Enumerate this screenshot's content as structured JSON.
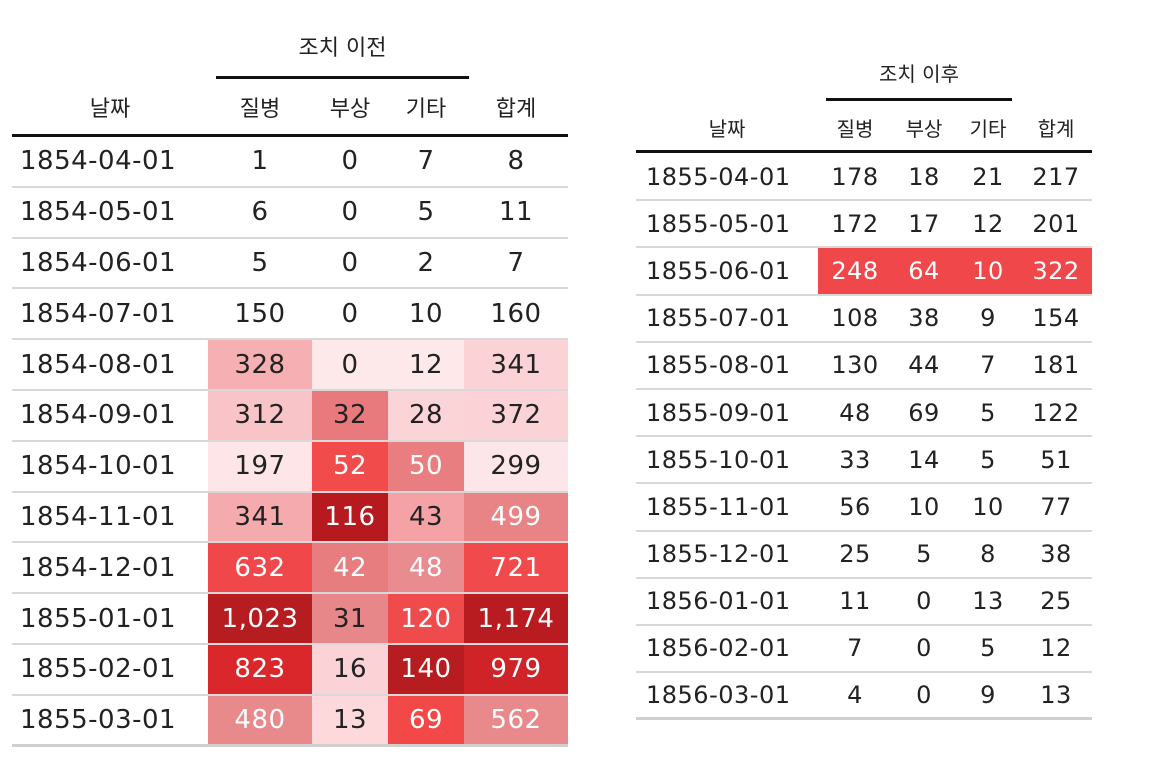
{
  "before": {
    "spanner": "조치 이전",
    "headers": [
      "날짜",
      "질병",
      "부상",
      "기타",
      "합계"
    ],
    "rows": [
      [
        "1854-04-01",
        "1",
        "0",
        "7",
        "8"
      ],
      [
        "1854-05-01",
        "6",
        "0",
        "5",
        "11"
      ],
      [
        "1854-06-01",
        "5",
        "0",
        "2",
        "7"
      ],
      [
        "1854-07-01",
        "150",
        "0",
        "10",
        "160"
      ],
      [
        "1854-08-01",
        "328",
        "0",
        "12",
        "341"
      ],
      [
        "1854-09-01",
        "312",
        "32",
        "28",
        "372"
      ],
      [
        "1854-10-01",
        "197",
        "52",
        "50",
        "299"
      ],
      [
        "1854-11-01",
        "341",
        "116",
        "43",
        "499"
      ],
      [
        "1854-12-01",
        "632",
        "42",
        "48",
        "721"
      ],
      [
        "1855-01-01",
        "1,023",
        "31",
        "120",
        "1,174"
      ],
      [
        "1855-02-01",
        "823",
        "16",
        "140",
        "979"
      ],
      [
        "1855-03-01",
        "480",
        "13",
        "69",
        "562"
      ]
    ],
    "fills": [
      [
        null,
        null,
        null,
        null,
        null
      ],
      [
        null,
        null,
        null,
        null,
        null
      ],
      [
        null,
        null,
        null,
        null,
        null
      ],
      [
        null,
        null,
        null,
        null,
        null
      ],
      [
        null,
        "#f6b0b3",
        "#fde8ea",
        "#fde8ea",
        "#fbd2d6"
      ],
      [
        null,
        "#f9c4c8",
        "#e8797d",
        "#fbd4d8",
        "#fbd3d7"
      ],
      [
        null,
        "#fde5e8",
        "#f24b4b",
        "#e97e80",
        "#fde6e9"
      ],
      [
        null,
        "#f5aaad",
        "#b71a1e",
        "#f4a2a6",
        "#e88386"
      ],
      [
        null,
        "#f0474a",
        "#e87d80",
        "#e88c8f",
        "#f04a4c"
      ],
      [
        null,
        "#b61d20",
        "#e8878a",
        "#ef4a4c",
        "#b91c20"
      ],
      [
        null,
        "#d9272c",
        "#fbd2d6",
        "#b71c20",
        "#cf2327"
      ],
      [
        null,
        "#e8898c",
        "#fdd9dc",
        "#f24848",
        "#e8898c"
      ]
    ],
    "text_colors": [
      [
        "#222",
        "#222",
        "#222",
        "#222",
        "#222"
      ],
      [
        "#222",
        "#222",
        "#222",
        "#222",
        "#222"
      ],
      [
        "#222",
        "#222",
        "#222",
        "#222",
        "#222"
      ],
      [
        "#222",
        "#222",
        "#222",
        "#222",
        "#222"
      ],
      [
        "#222",
        "#222",
        "#222",
        "#222",
        "#222"
      ],
      [
        "#222",
        "#222",
        "#222",
        "#222",
        "#222"
      ],
      [
        "#222",
        "#222",
        "#ffffff",
        "#ffffff",
        "#222"
      ],
      [
        "#222",
        "#222",
        "#ffffff",
        "#222",
        "#ffffff"
      ],
      [
        "#222",
        "#ffffff",
        "#ffffff",
        "#ffffff",
        "#ffffff"
      ],
      [
        "#222",
        "#ffffff",
        "#222",
        "#ffffff",
        "#ffffff"
      ],
      [
        "#222",
        "#ffffff",
        "#222",
        "#ffffff",
        "#ffffff"
      ],
      [
        "#222",
        "#ffffff",
        "#222",
        "#ffffff",
        "#ffffff"
      ]
    ]
  },
  "after": {
    "spanner": "조치 이후",
    "headers": [
      "날짜",
      "질병",
      "부상",
      "기타",
      "합계"
    ],
    "rows": [
      [
        "1855-04-01",
        "178",
        "18",
        "21",
        "217"
      ],
      [
        "1855-05-01",
        "172",
        "17",
        "12",
        "201"
      ],
      [
        "1855-06-01",
        "248",
        "64",
        "10",
        "322"
      ],
      [
        "1855-07-01",
        "108",
        "38",
        "9",
        "154"
      ],
      [
        "1855-08-01",
        "130",
        "44",
        "7",
        "181"
      ],
      [
        "1855-09-01",
        "48",
        "69",
        "5",
        "122"
      ],
      [
        "1855-10-01",
        "33",
        "14",
        "5",
        "51"
      ],
      [
        "1855-11-01",
        "56",
        "10",
        "10",
        "77"
      ],
      [
        "1855-12-01",
        "25",
        "5",
        "8",
        "38"
      ],
      [
        "1856-01-01",
        "11",
        "0",
        "13",
        "25"
      ],
      [
        "1856-02-01",
        "7",
        "0",
        "5",
        "12"
      ],
      [
        "1856-03-01",
        "4",
        "0",
        "9",
        "13"
      ]
    ],
    "highlight_row": 2,
    "highlight_color": "#f0474a"
  }
}
